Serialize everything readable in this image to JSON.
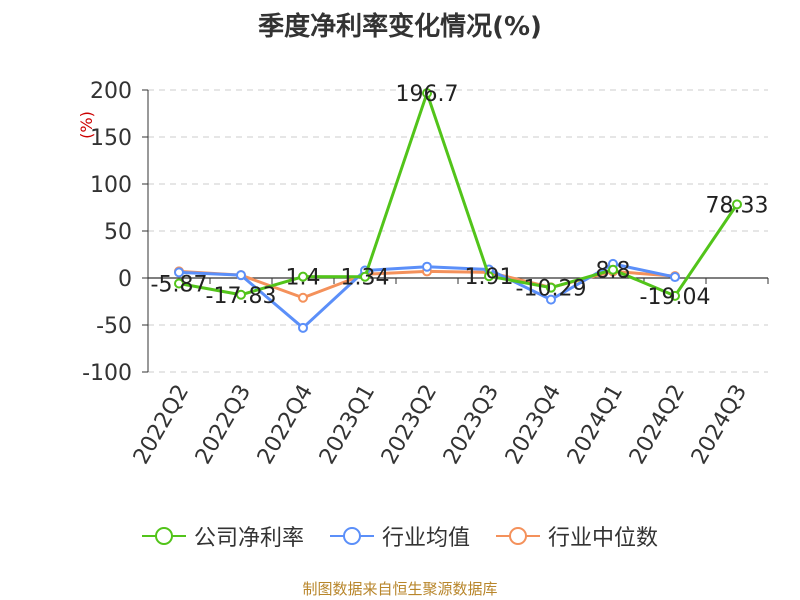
{
  "chart_data": {
    "type": "line",
    "title": "季度净利率变化情况(%)",
    "ylabel": "(%)",
    "categories": [
      "2022Q2",
      "2022Q3",
      "2022Q4",
      "2023Q1",
      "2023Q2",
      "2023Q3",
      "2023Q4",
      "2024Q1",
      "2024Q2",
      "2024Q3"
    ],
    "ylim": [
      -100,
      200
    ],
    "yticks": [
      200,
      150,
      100,
      50,
      0,
      -50,
      -100
    ],
    "grid": true,
    "legend_position": "bottom",
    "series": [
      {
        "name": "公司净利率",
        "color": "#52c41a",
        "values": [
          -5.87,
          -17.83,
          1.4,
          1.34,
          196.7,
          1.91,
          -10.29,
          8.8,
          -19.04,
          78.33
        ],
        "labels": [
          "-5.87",
          "-17.83",
          "1.4",
          "1.34",
          "196.7",
          "1.91",
          "-10.29",
          "8.8",
          "-19.04",
          "78.33"
        ]
      },
      {
        "name": "行业均值",
        "color": "#5b8ff9",
        "values": [
          6,
          3,
          -53,
          8,
          12,
          9,
          -23,
          15,
          1,
          null
        ]
      },
      {
        "name": "行业中位数",
        "color": "#f4915b",
        "values": [
          7,
          3,
          -21,
          4,
          7,
          6,
          -10,
          7,
          2,
          null
        ]
      }
    ]
  },
  "footer": {
    "source": "制图数据来自恒生聚源数据库"
  }
}
